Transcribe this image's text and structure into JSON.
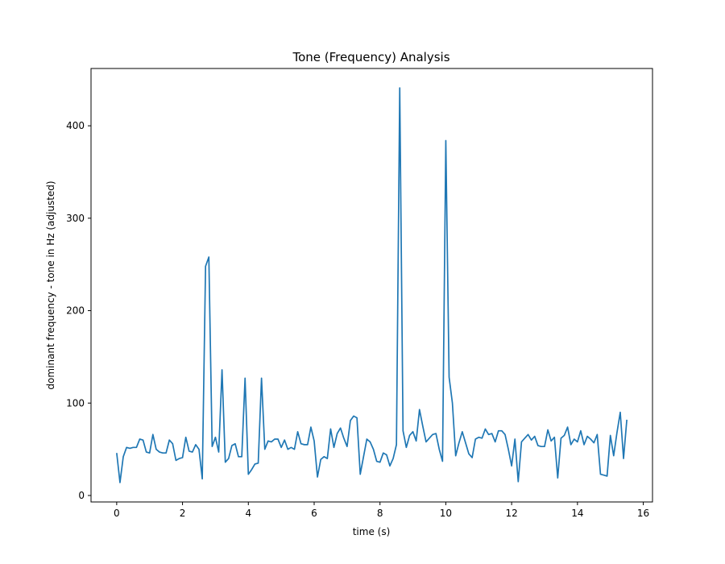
{
  "chart_data": {
    "type": "line",
    "title": "Tone (Frequency) Analysis",
    "xlabel": "time (s)",
    "ylabel": "dominant frequency - tone in Hz (adjusted)",
    "xlim": [
      -0.78,
      16.28
    ],
    "ylim": [
      -7,
      462
    ],
    "xticks": [
      0,
      2,
      4,
      6,
      8,
      10,
      12,
      14,
      16
    ],
    "yticks": [
      0,
      100,
      200,
      300,
      400
    ],
    "grid": false,
    "series_color": "#1f77b4",
    "series": [
      {
        "x": [
          0,
          0.1,
          0.2,
          0.3,
          0.4,
          0.5,
          0.6,
          0.7,
          0.8,
          0.9,
          1.0,
          1.1,
          1.2,
          1.3,
          1.4,
          1.5,
          1.6,
          1.7,
          1.8,
          1.9,
          2.0,
          2.1,
          2.2,
          2.3,
          2.4,
          2.5,
          2.6,
          2.7,
          2.8,
          2.9,
          3.0,
          3.1,
          3.2,
          3.3,
          3.4,
          3.5,
          3.6,
          3.7,
          3.8,
          3.9,
          4.0,
          4.1,
          4.2,
          4.3,
          4.4,
          4.5,
          4.6,
          4.7,
          4.8,
          4.9,
          5.0,
          5.1,
          5.2,
          5.3,
          5.4,
          5.5,
          5.6,
          5.7,
          5.8,
          5.9,
          6.0,
          6.1,
          6.2,
          6.3,
          6.4,
          6.5,
          6.6,
          6.7,
          6.8,
          6.9,
          7.0,
          7.1,
          7.2,
          7.3,
          7.4,
          7.5,
          7.6,
          7.7,
          7.8,
          7.9,
          8.0,
          8.1,
          8.2,
          8.3,
          8.4,
          8.5,
          8.6,
          8.7,
          8.8,
          8.9,
          9.0,
          9.1,
          9.2,
          9.3,
          9.4,
          9.5,
          9.6,
          9.7,
          9.8,
          9.9,
          10.0,
          10.1,
          10.2,
          10.3,
          10.4,
          10.5,
          10.6,
          10.7,
          10.8,
          10.9,
          11.0,
          11.1,
          11.2,
          11.3,
          11.4,
          11.5,
          11.6,
          11.7,
          11.8,
          11.9,
          12.0,
          12.1,
          12.2,
          12.3,
          12.4,
          12.5,
          12.6,
          12.7,
          12.8,
          12.9,
          13.0,
          13.1,
          13.2,
          13.3,
          13.4,
          13.5,
          13.6,
          13.7,
          13.8,
          13.9,
          14.0,
          14.1,
          14.2,
          14.3,
          14.4,
          14.5,
          14.6,
          14.7,
          14.8,
          14.9,
          15.0,
          15.1,
          15.2,
          15.3,
          15.4,
          15.5
        ],
        "values": [
          46,
          14,
          42,
          52,
          51,
          52,
          52,
          61,
          60,
          47,
          46,
          66,
          50,
          47,
          46,
          46,
          60,
          56,
          38,
          40,
          41,
          63,
          48,
          47,
          55,
          50,
          18,
          248,
          258,
          53,
          63,
          47,
          136,
          36,
          40,
          54,
          56,
          42,
          42,
          127,
          23,
          28,
          34,
          35,
          127,
          50,
          59,
          58,
          61,
          61,
          52,
          60,
          50,
          52,
          50,
          69,
          56,
          55,
          55,
          74,
          59,
          20,
          39,
          42,
          40,
          72,
          52,
          67,
          73,
          62,
          53,
          81,
          86,
          84,
          23,
          42,
          61,
          58,
          50,
          37,
          36,
          46,
          44,
          32,
          40,
          55,
          441,
          70,
          52,
          65,
          69,
          59,
          93,
          75,
          58,
          62,
          66,
          67,
          50,
          37,
          384,
          128,
          100,
          43,
          57,
          69,
          57,
          45,
          41,
          61,
          63,
          62,
          72,
          66,
          67,
          58,
          70,
          70,
          66,
          50,
          32,
          61,
          15,
          58,
          62,
          66,
          60,
          64,
          54,
          53,
          53,
          71,
          59,
          63,
          19,
          62,
          65,
          74,
          55,
          61,
          58,
          70,
          55,
          64,
          61,
          57,
          66,
          23,
          22,
          21,
          65,
          43,
          68,
          90,
          40,
          82
        ]
      }
    ]
  }
}
